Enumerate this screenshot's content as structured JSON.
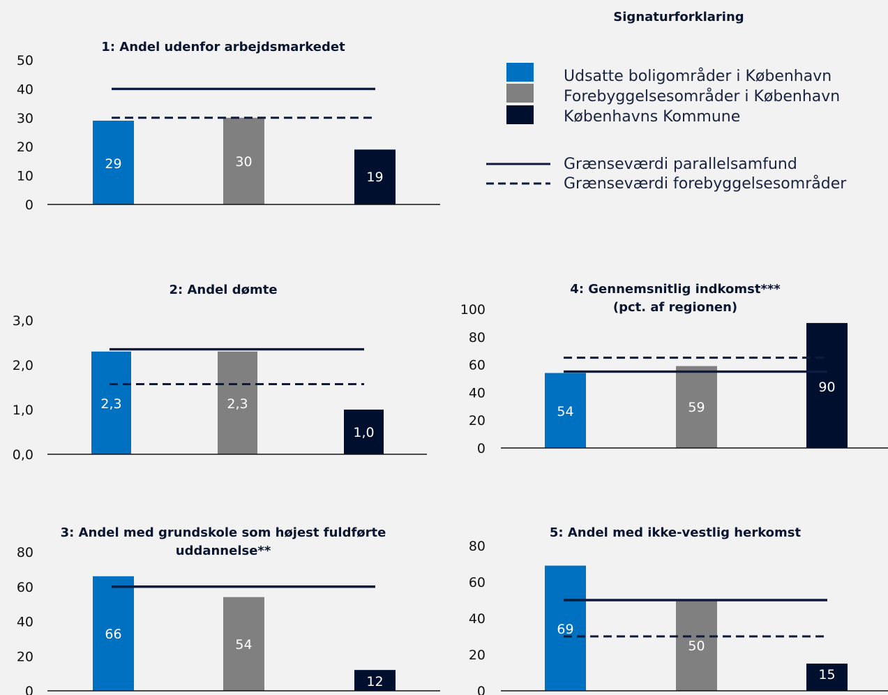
{
  "colors": {
    "udsatte": "#0070c0",
    "forebyggelse": "#808080",
    "kommune": "#000f2e",
    "line": "#0d1b3e"
  },
  "legend": {
    "title": "Signaturforklaring",
    "items": [
      {
        "label": "Udsatte boligområder i København",
        "type": "box",
        "color": "#0070c0"
      },
      {
        "label": "Forebyggelsesområder i København",
        "type": "box",
        "color": "#808080"
      },
      {
        "label": "Københavns Kommune",
        "type": "box",
        "color": "#000f2e"
      },
      {
        "label": "Grænseværdi parallelsamfund",
        "type": "solid"
      },
      {
        "label": "Grænseværdi forebyggelsesområder",
        "type": "dashed"
      }
    ]
  },
  "chart_data": [
    {
      "type": "bar",
      "title": [
        "1: Andel udenfor arbejdsmarkedet"
      ],
      "categories": [
        "Udsatte boligområder i København",
        "Forebyggelsesområder i København",
        "Københavns Kommune"
      ],
      "values": [
        29,
        30,
        19
      ],
      "value_labels": [
        "29",
        "30",
        "19"
      ],
      "ylim": [
        0,
        50
      ],
      "yticks": [
        "0",
        "10",
        "20",
        "30",
        "40",
        "50"
      ],
      "thresholds": {
        "parallelsamfund": 40,
        "forebyggelse": 30
      }
    },
    {
      "type": "bar",
      "title": [
        "2: Andel dømte"
      ],
      "categories": [
        "Udsatte boligområder i København",
        "Forebyggelsesområder i København",
        "Københavns Kommune"
      ],
      "values": [
        2.3,
        2.3,
        1.0
      ],
      "value_labels": [
        "2,3",
        "2,3",
        "1,0"
      ],
      "ylim": [
        0,
        3
      ],
      "yticks": [
        "0,0",
        "1,0",
        "2,0",
        "3,0"
      ],
      "thresholds": {
        "parallelsamfund": 2.35,
        "forebyggelse": 1.57
      }
    },
    {
      "type": "bar",
      "title": [
        "3: Andel med grundskole som højest fuldførte",
        "uddannelse**"
      ],
      "categories": [
        "Udsatte boligområder i København",
        "Forebyggelsesområder i København",
        "Københavns Kommune"
      ],
      "values": [
        66,
        54,
        12
      ],
      "value_labels": [
        "66",
        "54",
        "12"
      ],
      "ylim": [
        0,
        80
      ],
      "yticks": [
        "0",
        "20",
        "40",
        "60",
        "80"
      ],
      "thresholds": {
        "parallelsamfund": 60,
        "forebyggelse": 60
      }
    },
    {
      "type": "bar",
      "title": [
        "4: Gennemsnitlig indkomst***",
        "(pct. af regionen)"
      ],
      "categories": [
        "Udsatte boligområder i København",
        "Forebyggelsesområder i København",
        "Københavns Kommune"
      ],
      "values": [
        54,
        59,
        90
      ],
      "value_labels": [
        "54",
        "59",
        "90"
      ],
      "ylim": [
        0,
        100
      ],
      "yticks": [
        "0",
        "20",
        "40",
        "60",
        "80",
        "100"
      ],
      "thresholds": {
        "parallelsamfund": 55,
        "forebyggelse": 65
      }
    },
    {
      "type": "bar",
      "title": [
        "5: Andel med ikke-vestlig herkomst"
      ],
      "categories": [
        "Udsatte boligområder i København",
        "Forebyggelsesområder i København",
        "Københavns Kommune"
      ],
      "values": [
        69,
        50,
        15
      ],
      "value_labels": [
        "69",
        "50",
        "15"
      ],
      "ylim": [
        0,
        80
      ],
      "yticks": [
        "0",
        "20",
        "40",
        "60",
        "80"
      ],
      "thresholds": {
        "parallelsamfund": 50,
        "forebyggelse": 30
      }
    }
  ]
}
